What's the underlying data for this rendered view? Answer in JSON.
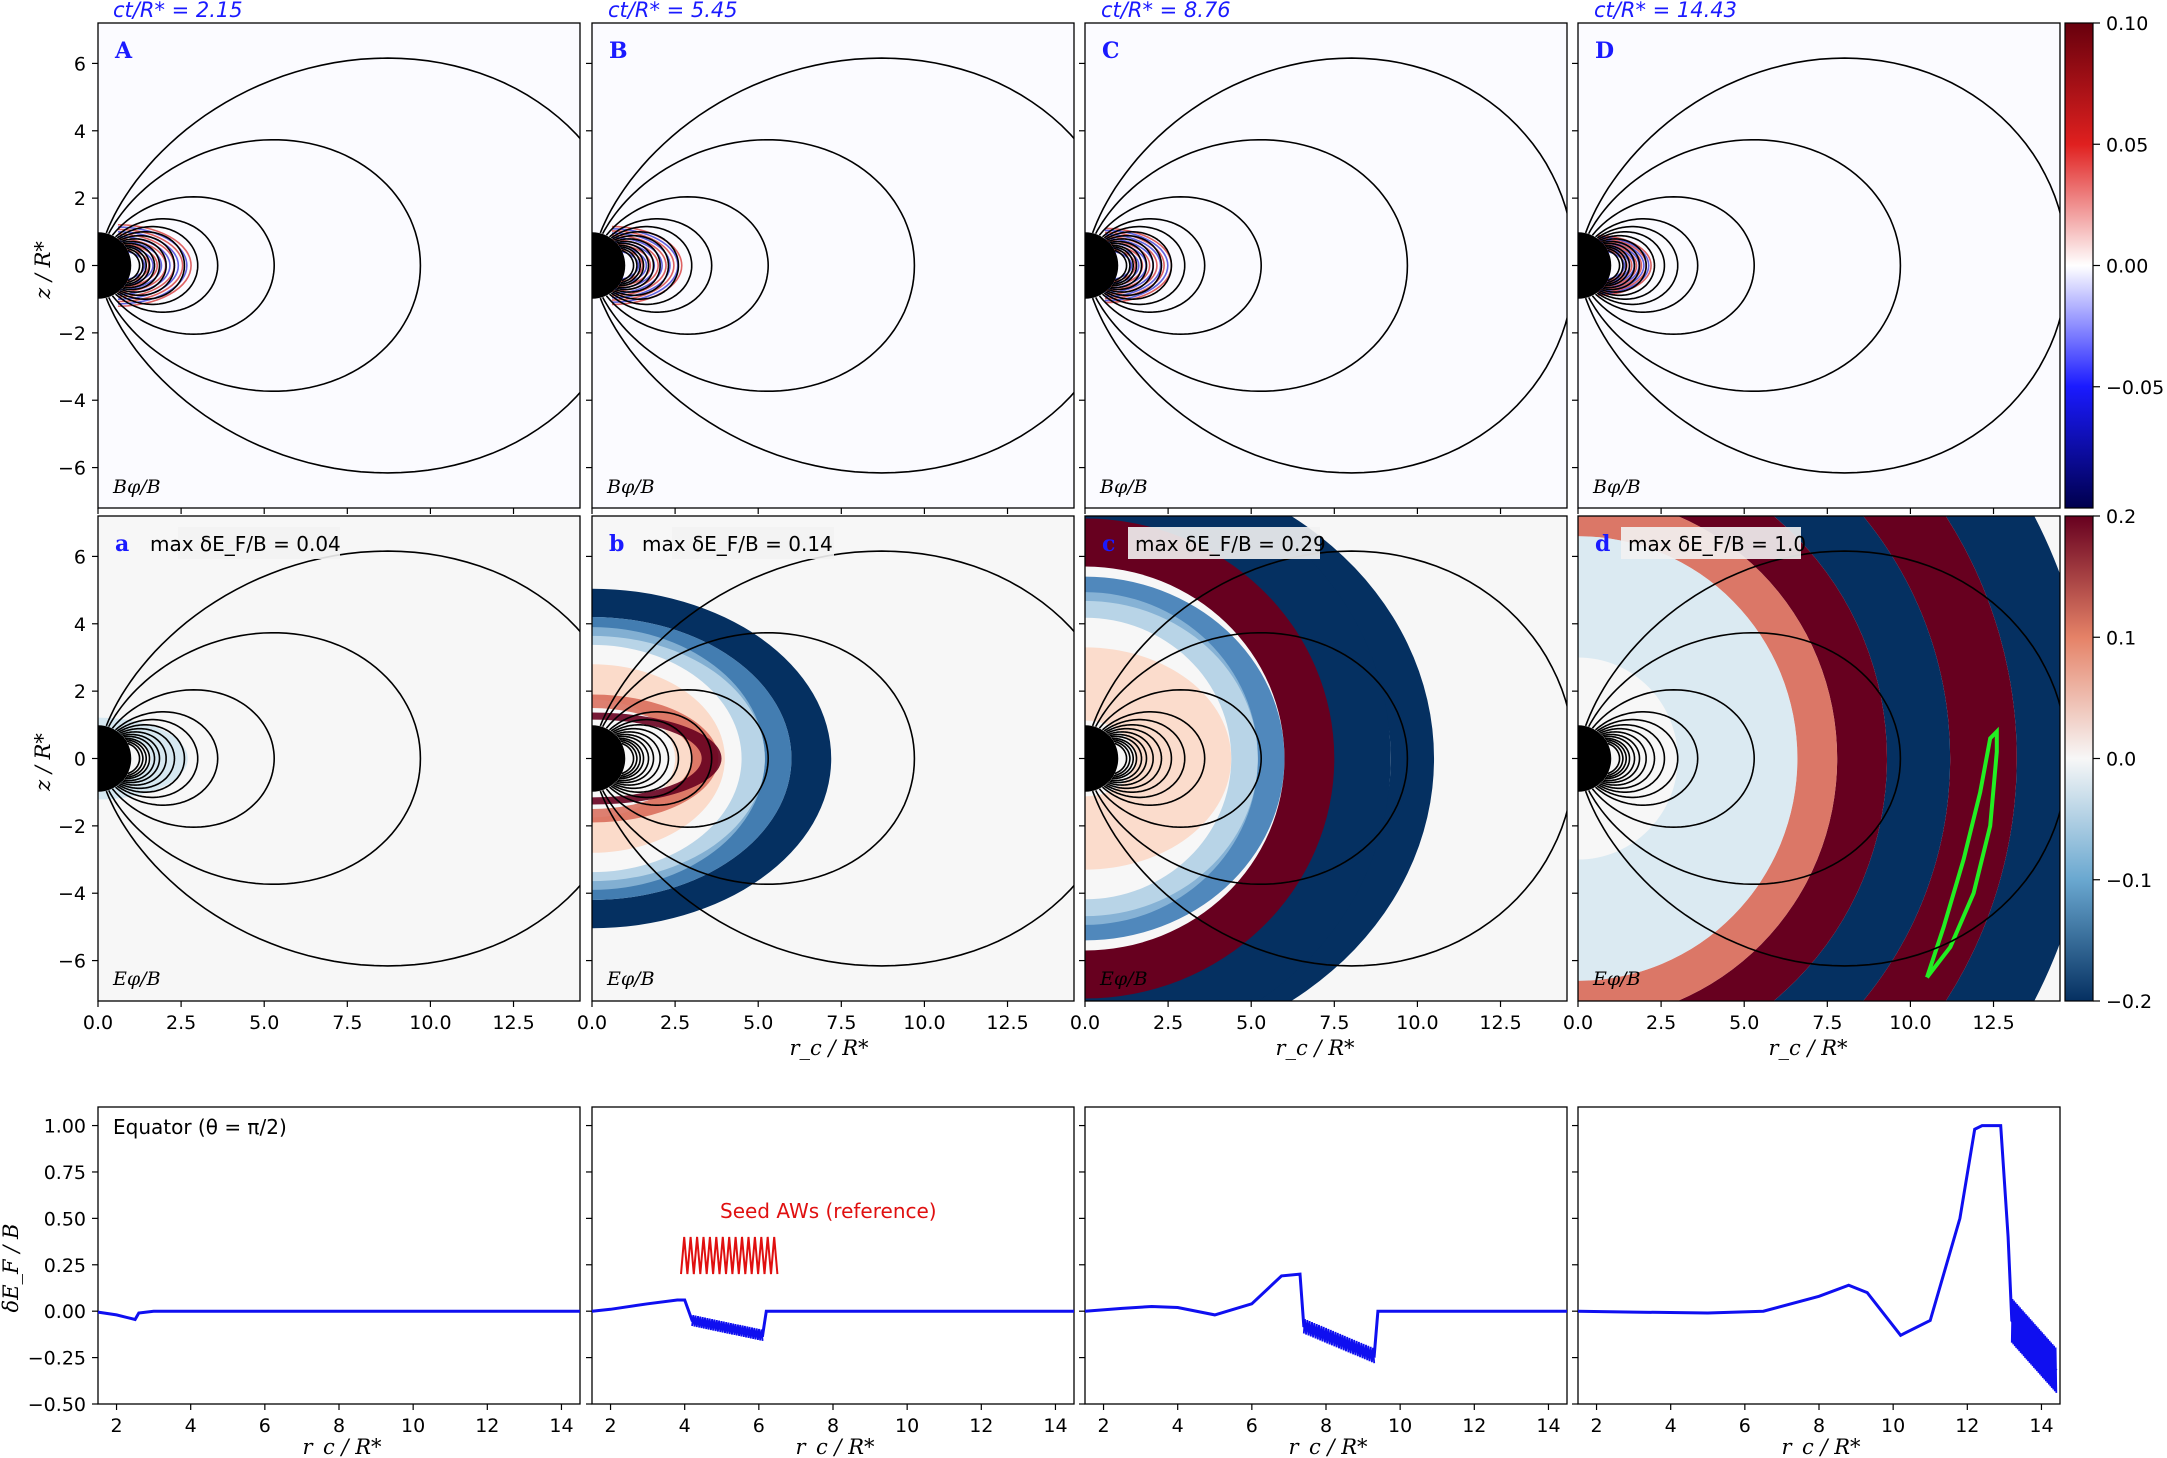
{
  "chart_data": {
    "type": "heatmap",
    "times": [
      "ct/R* = 2.15",
      "ct/R* = 5.45",
      "ct/R* = 8.76",
      "ct/R* = 14.43"
    ],
    "top_row": {
      "quantity": "Bφ/B",
      "panel_letters": [
        "A",
        "B",
        "C",
        "D"
      ],
      "colorbar_ticks": [
        "0.10",
        "0.05",
        "0.00",
        "−0.05"
      ],
      "colorbar_range": [
        -0.1,
        0.1
      ]
    },
    "middle_row": {
      "quantity": "Eφ/B",
      "panel_letters": [
        "a",
        "b",
        "c",
        "d"
      ],
      "max_annotations": [
        "max δE_F/B = 0.04",
        "max δE_F/B = 0.14",
        "max δE_F/B = 0.29",
        "max δE_F/B = 1.0"
      ],
      "colorbar_ticks": [
        "0.2",
        "0.1",
        "0.0",
        "−0.1",
        "−0.2"
      ],
      "colorbar_range": [
        -0.2,
        0.2
      ]
    },
    "xlabel": "r_c / R*",
    "ylabel": "z / R*",
    "xlim": [
      0,
      14.5
    ],
    "ylim": [
      -7.2,
      7.2
    ],
    "x_ticks": [
      "0.0",
      "2.5",
      "5.0",
      "7.5",
      "10.0",
      "12.5"
    ],
    "y_ticks": [
      "6",
      "4",
      "2",
      "0",
      "−2",
      "−4",
      "−6"
    ],
    "field_line_L": [
      1.25,
      1.35,
      1.45,
      1.55,
      1.7,
      1.85,
      2.05,
      2.3,
      2.6,
      3.0,
      3.6,
      5.3,
      9.7,
      16
    ],
    "bottom_row": {
      "type": "line",
      "ylabel": "δE_F / B",
      "xlabel": "r_c / R*",
      "xlim": [
        1.5,
        14.5
      ],
      "ylim": [
        -0.5,
        1.1
      ],
      "x_ticks": [
        "2",
        "4",
        "6",
        "8",
        "10",
        "12",
        "14"
      ],
      "y_ticks": [
        "1.00",
        "0.75",
        "0.50",
        "0.25",
        "0.00",
        "−0.25",
        "−0.50"
      ],
      "equator_label": "Equator (θ = π/2)",
      "seed_label": "Seed AWs (reference)",
      "series": [
        {
          "name": "t1",
          "x": [
            1.5,
            2.0,
            2.4,
            2.5,
            2.6,
            3.0,
            14.5
          ],
          "y": [
            -0.005,
            -0.02,
            -0.04,
            -0.045,
            -0.01,
            0.0,
            0.0
          ]
        },
        {
          "name": "t2",
          "x": [
            1.5,
            2.0,
            3.0,
            3.8,
            4.0,
            4.2,
            6.1,
            6.2,
            14.5
          ],
          "y": [
            0.0,
            0.01,
            0.04,
            0.06,
            0.06,
            -0.05,
            -0.13,
            0.0,
            0.0
          ]
        },
        {
          "name": "t3",
          "x": [
            1.5,
            2.5,
            3.3,
            4.0,
            5.0,
            6.0,
            6.8,
            7.3,
            7.4,
            9.3,
            9.4,
            14.5
          ],
          "y": [
            0.0,
            0.015,
            0.025,
            0.02,
            -0.02,
            0.04,
            0.19,
            0.2,
            -0.08,
            -0.24,
            0.0,
            0.0
          ]
        },
        {
          "name": "t4",
          "x": [
            1.5,
            3.0,
            5.0,
            6.5,
            8.0,
            8.8,
            9.3,
            10.2,
            11.0,
            11.8,
            12.2,
            12.4,
            12.9,
            13.1,
            13.2,
            14.4
          ],
          "y": [
            0.0,
            -0.005,
            -0.01,
            0.0,
            0.08,
            0.14,
            0.1,
            -0.13,
            -0.05,
            0.5,
            0.98,
            1.0,
            1.0,
            0.4,
            -0.05,
            -0.32
          ]
        }
      ]
    }
  },
  "colors": {
    "line": "#0f0ff0",
    "seed": "#e01010",
    "title": "#1a1aff",
    "green": "#22ee22"
  }
}
